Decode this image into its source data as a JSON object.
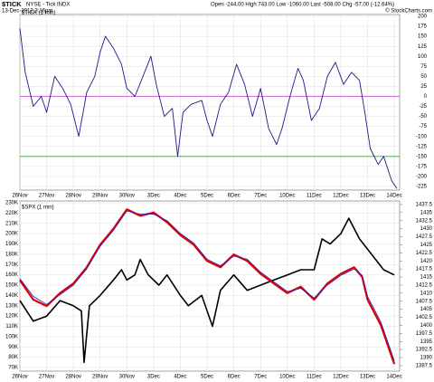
{
  "header": {
    "symbol": "$TICK",
    "name": "NYSE - Tick INDX",
    "date": "13-Dec-2012 3:16pm",
    "quote": "Open -244.00  High 743.00  Low -1060.00  Last -508.00  Chg -57.00 (-12.64%)",
    "source": "© StockCharts.com"
  },
  "chart_data": [
    {
      "type": "line",
      "label": "$TICK (1 min)",
      "grid": true,
      "ylim": [
        -234,
        204.5
      ],
      "xlim": [
        0,
        14.2
      ],
      "yticks": [
        200,
        175,
        150,
        125,
        100,
        75,
        50,
        25,
        0,
        -25,
        -50,
        -75,
        -100,
        -125,
        -150,
        -175,
        -200,
        -225
      ],
      "xticks": [
        {
          "value": 0,
          "label": "26Nov"
        },
        {
          "value": 1,
          "label": "27Nov"
        },
        {
          "value": 2,
          "label": "28Nov"
        },
        {
          "value": 3,
          "label": "29Nov"
        },
        {
          "value": 4,
          "label": "30Nov"
        },
        {
          "value": 5,
          "label": "3Dec"
        },
        {
          "value": 6,
          "label": "4Dec"
        },
        {
          "value": 7,
          "label": "5Dec"
        },
        {
          "value": 8,
          "label": "6Dec"
        },
        {
          "value": 9,
          "label": "7Dec"
        },
        {
          "value": 10,
          "label": "10Dec"
        },
        {
          "value": 11,
          "label": "11Dec"
        },
        {
          "value": 12,
          "label": "12Dec"
        },
        {
          "value": 13,
          "label": "13Dec"
        },
        {
          "value": 14,
          "label": "14Dec"
        }
      ],
      "reference_lines": [
        {
          "value": 0,
          "color": "#c040c0"
        },
        {
          "value": -150,
          "color": "#40a040"
        }
      ],
      "series": [
        {
          "name": "$TICK",
          "color": "#1a1a8c",
          "x": [
            0,
            0.2,
            0.5,
            0.8,
            1.0,
            1.3,
            1.6,
            1.9,
            2.2,
            2.5,
            2.8,
            3.0,
            3.2,
            3.5,
            3.8,
            4.0,
            4.3,
            4.6,
            4.9,
            5.1,
            5.4,
            5.7,
            5.9,
            6.1,
            6.4,
            6.8,
            7.0,
            7.2,
            7.5,
            7.8,
            8.1,
            8.4,
            8.7,
            9.0,
            9.3,
            9.6,
            9.8,
            10.1,
            10.4,
            10.6,
            10.9,
            11.2,
            11.5,
            11.8,
            12.1,
            12.4,
            12.7,
            12.9,
            13.1,
            13.4,
            13.6,
            13.9,
            14.1
          ],
          "values": [
            170,
            60,
            -25,
            0,
            -40,
            50,
            20,
            -20,
            -100,
            10,
            50,
            110,
            150,
            120,
            80,
            20,
            0,
            50,
            100,
            30,
            -50,
            -30,
            -150,
            -40,
            -20,
            -10,
            -60,
            -100,
            -20,
            10,
            80,
            30,
            -50,
            20,
            -80,
            -120,
            -80,
            0,
            70,
            40,
            -60,
            -30,
            50,
            85,
            30,
            60,
            40,
            -40,
            -130,
            -170,
            -150,
            -210,
            -230
          ]
        }
      ]
    },
    {
      "type": "line",
      "label": "$SPX (1 min)",
      "grid": true,
      "ylim": [
        66500,
        231800
      ],
      "y2lim": [
        1385.8,
        1438.6
      ],
      "xlim": [
        0,
        14.2
      ],
      "yticks": [
        {
          "value": 230000,
          "label": "230K"
        },
        {
          "value": 220000,
          "label": "220K"
        },
        {
          "value": 210000,
          "label": "210K"
        },
        {
          "value": 200000,
          "label": "200K"
        },
        {
          "value": 190000,
          "label": "190K"
        },
        {
          "value": 180000,
          "label": "180K"
        },
        {
          "value": 170000,
          "label": "170K"
        },
        {
          "value": 160000,
          "label": "160K"
        },
        {
          "value": 150000,
          "label": "150K"
        },
        {
          "value": 140000,
          "label": "140K"
        },
        {
          "value": 130000,
          "label": "130K"
        },
        {
          "value": 120000,
          "label": "120K"
        },
        {
          "value": 110000,
          "label": "110K"
        },
        {
          "value": 100000,
          "label": "100K"
        },
        {
          "value": 90000,
          "label": "90K"
        },
        {
          "value": 80000,
          "label": "80K"
        },
        {
          "value": 70000,
          "label": "70K"
        }
      ],
      "y2ticks": [
        1437.5,
        1435,
        1432.5,
        1430,
        1427.5,
        1425,
        1422.5,
        1420,
        1417.5,
        1415,
        1412.5,
        1410,
        1407.5,
        1405,
        1402.5,
        1400,
        1397.5,
        1395,
        1392.5,
        1390,
        1387.5
      ],
      "xticks": [
        {
          "value": 0,
          "label": "26Nov"
        },
        {
          "value": 1,
          "label": "27Nov"
        },
        {
          "value": 2,
          "label": "28Nov"
        },
        {
          "value": 3,
          "label": "29Nov"
        },
        {
          "value": 4,
          "label": "30Nov"
        },
        {
          "value": 5,
          "label": "3Dec"
        },
        {
          "value": 6,
          "label": "4Dec"
        },
        {
          "value": 7,
          "label": "5Dec"
        },
        {
          "value": 8,
          "label": "6Dec"
        },
        {
          "value": 9,
          "label": "7Dec"
        },
        {
          "value": 10,
          "label": "10Dec"
        },
        {
          "value": 11,
          "label": "11Dec"
        },
        {
          "value": 12,
          "label": "12Dec"
        },
        {
          "value": 13,
          "label": "13Dec"
        },
        {
          "value": 14,
          "label": "14Dec"
        }
      ],
      "series": [
        {
          "color": "#000000",
          "width": 1.6,
          "x": [
            0,
            0.5,
            1,
            1.5,
            2.0,
            2.3,
            2.4,
            2.6,
            3,
            3.5,
            3.8,
            4,
            4.3,
            4.5,
            4.8,
            5.2,
            5.5,
            6,
            6.3,
            6.8,
            7.2,
            7.5,
            8,
            8.5,
            9,
            9.5,
            10,
            10.5,
            11,
            11.3,
            11.6,
            12,
            12.3,
            12.5,
            12.7,
            13,
            13.3,
            13.6,
            14
          ],
          "values": [
            135000,
            115000,
            120000,
            135000,
            130000,
            125000,
            75000,
            130000,
            140000,
            155000,
            165000,
            155000,
            160000,
            175000,
            160000,
            150000,
            160000,
            140000,
            130000,
            140000,
            110000,
            145000,
            160000,
            145000,
            150000,
            155000,
            160000,
            165000,
            165000,
            195000,
            190000,
            200000,
            215000,
            205000,
            195000,
            185000,
            175000,
            165000,
            160000
          ]
        },
        {
          "color": "#e00000",
          "width": 2.2,
          "axis": "y2",
          "x": [
            0,
            0.5,
            1,
            1.5,
            2,
            2.5,
            3,
            3.5,
            4,
            4.5,
            5,
            5.5,
            6,
            6.5,
            7,
            7.5,
            8,
            8.5,
            9,
            9.5,
            10,
            10.5,
            11,
            11.5,
            12,
            12.5,
            12.8,
            13,
            13.5,
            14
          ],
          "values": [
            1414,
            1408,
            1406,
            1410,
            1413,
            1418,
            1425,
            1430,
            1436,
            1434,
            1435,
            1432,
            1428,
            1425,
            1420,
            1418,
            1422,
            1420,
            1416,
            1413,
            1410,
            1412,
            1408,
            1413,
            1416,
            1418,
            1415,
            1408,
            1400,
            1388
          ]
        },
        {
          "color": "#2020c0",
          "width": 0.8,
          "axis": "y2",
          "x": [
            0,
            0.5,
            1,
            1.5,
            2,
            2.5,
            3,
            3.5,
            4,
            4.5,
            5,
            5.5,
            6,
            6.5,
            7,
            7.5,
            8,
            8.5,
            9,
            9.5,
            10,
            10.5,
            11,
            11.5,
            12,
            12.5,
            12.8,
            13,
            13.5,
            14
          ],
          "values": [
            1414.5,
            1409,
            1406.5,
            1409.5,
            1412.5,
            1417.5,
            1424.5,
            1429.5,
            1435.5,
            1434.5,
            1434.5,
            1432.5,
            1428.5,
            1425.5,
            1420.5,
            1418.5,
            1421.5,
            1420.5,
            1416.5,
            1413.5,
            1410.5,
            1411.5,
            1408.5,
            1412.5,
            1415.5,
            1417.5,
            1415.5,
            1409,
            1401,
            1389
          ]
        }
      ]
    }
  ]
}
